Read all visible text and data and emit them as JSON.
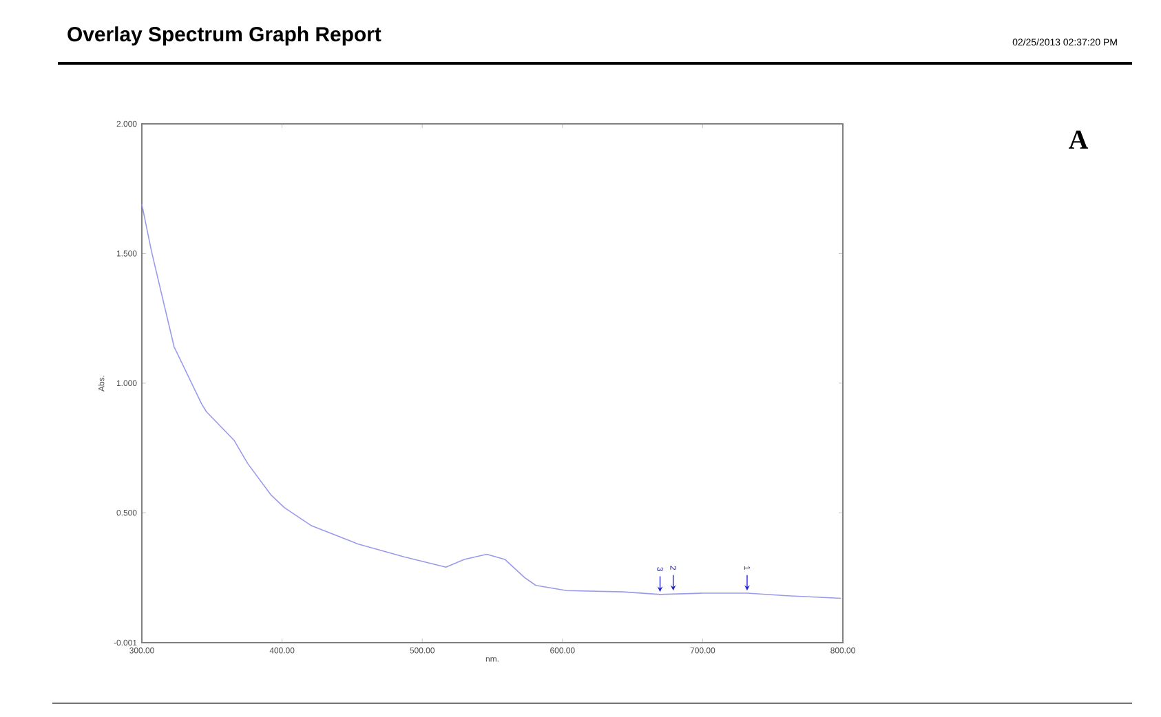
{
  "chart_data": {
    "type": "line",
    "title": "Overlay Spectrum Graph Report",
    "xlabel": "nm.",
    "ylabel": "Abs.",
    "x": [
      300,
      306.8,
      323,
      342.6,
      346,
      365.7,
      375.5,
      391.9,
      401.6,
      421,
      454,
      487,
      516.9,
      530,
      546,
      559,
      573,
      581,
      602.9,
      643,
      669.6,
      700,
      731.7,
      760,
      798.7
    ],
    "series": [
      {
        "color": "#9a9aea",
        "values": [
          1.69,
          1.51,
          1.14,
          0.92,
          0.89,
          0.78,
          0.69,
          0.57,
          0.52,
          0.45,
          0.38,
          0.33,
          0.29,
          0.32,
          0.34,
          0.32,
          0.25,
          0.22,
          0.2,
          0.195,
          0.185,
          0.19,
          0.19,
          0.18,
          0.17
        ]
      }
    ],
    "xlim": [
      300,
      800
    ],
    "ylim": [
      -0.001,
      2.0
    ],
    "xticks": [
      {
        "value": 300,
        "label": "300.00"
      },
      {
        "value": 400,
        "label": "400.00"
      },
      {
        "value": 500,
        "label": "500.00"
      },
      {
        "value": 600,
        "label": "600.00"
      },
      {
        "value": 700,
        "label": "700.00"
      },
      {
        "value": 800,
        "label": "800.00"
      }
    ],
    "yticks": [
      {
        "value": -0.001,
        "label": "-0.001"
      },
      {
        "value": 0.5,
        "label": "0.500"
      },
      {
        "value": 1.0,
        "label": "1.000"
      },
      {
        "value": 1.5,
        "label": "1.500"
      },
      {
        "value": 2.0,
        "label": "2.000"
      }
    ],
    "annotations": [
      "02/25/2013  02:37:20 PM",
      "A",
      {
        "text": "1",
        "x": 731.7,
        "y": 0.19
      },
      {
        "text": "2",
        "x": 679,
        "y": 0.19
      },
      {
        "text": "3",
        "x": 669.6,
        "y": 0.185
      }
    ]
  }
}
